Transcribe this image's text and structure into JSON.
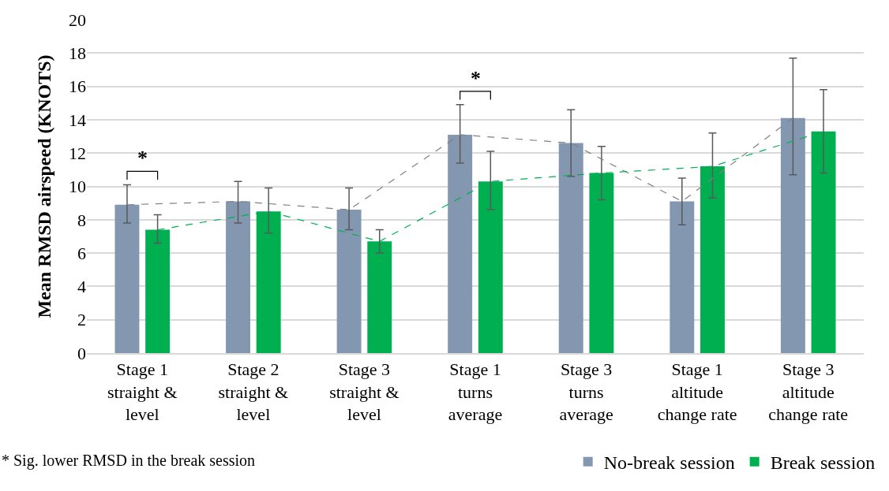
{
  "chart_data": {
    "type": "bar",
    "ylabel": "Mean RMSD airspeed (KNOTS)",
    "categories": [
      "Stage 1\nstraight &\nlevel",
      "Stage 2\nstraight &\nlevel",
      "Stage 3\nstraight &\nlevel",
      "Stage 1\nturns\naverage",
      "Stage 3\nturns\naverage",
      "Stage 1\naltitude\nchange rate",
      "Stage 3\naltitude\nchange rate"
    ],
    "series": [
      {
        "name": "No-break session",
        "color": "#8497b0",
        "values": [
          8.9,
          9.1,
          8.6,
          13.1,
          12.6,
          9.1,
          14.1
        ],
        "errors": [
          [
            7.8,
            10.1
          ],
          [
            7.8,
            10.3
          ],
          [
            7.4,
            9.9
          ],
          [
            11.4,
            14.9
          ],
          [
            10.6,
            14.6
          ],
          [
            7.7,
            10.5
          ],
          [
            10.7,
            17.7
          ]
        ]
      },
      {
        "name": "Break session",
        "color": "#00b050",
        "values": [
          7.4,
          8.5,
          6.7,
          10.3,
          10.8,
          11.2,
          13.3
        ],
        "errors": [
          [
            6.6,
            8.3
          ],
          [
            7.2,
            9.9
          ],
          [
            6.0,
            7.4
          ],
          [
            8.6,
            12.1
          ],
          [
            9.2,
            12.4
          ],
          [
            9.3,
            13.2
          ],
          [
            10.8,
            15.8
          ]
        ]
      },
      {
        "type": "line",
        "line_style": "dashed",
        "color": "#808080",
        "values": [
          8.9,
          9.1,
          8.6,
          13.1,
          12.6,
          9.1,
          14.1
        ]
      },
      {
        "type": "line",
        "line_style": "dashed",
        "color": "#00b050",
        "values": [
          7.4,
          8.5,
          6.7,
          10.3,
          10.8,
          11.2,
          13.3
        ]
      }
    ],
    "ylim": [
      0,
      20
    ],
    "yticks": [
      0,
      2,
      4,
      6,
      8,
      10,
      12,
      14,
      16,
      18,
      20
    ],
    "grid": "y",
    "legend": "bottom right",
    "annotations": [
      "*",
      "*",
      "* Sig. lower RMSD in the break session"
    ]
  }
}
